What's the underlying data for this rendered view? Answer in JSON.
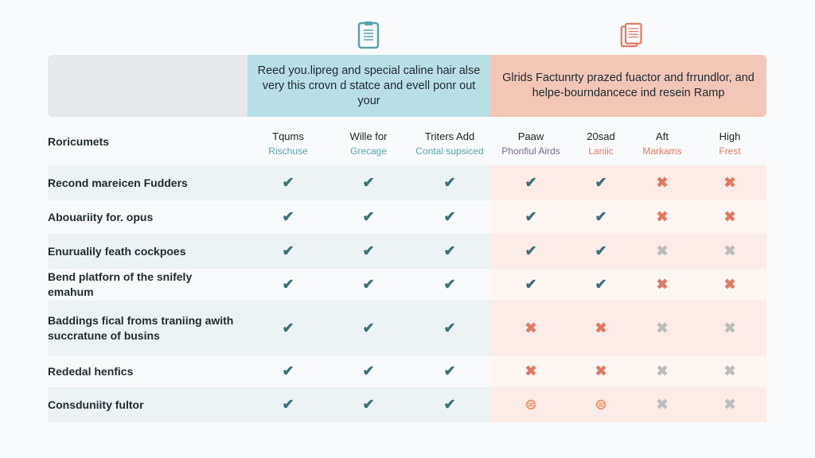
{
  "colors": {
    "blue_band": "#b9dfe6",
    "salmon_band": "#f3c6b8",
    "gray_band": "#e6e8e9",
    "check": "#3f6f7a",
    "cross": "#e07a63",
    "cross_muted": "#bdbdbd"
  },
  "icons": {
    "left": "clipboard-icon",
    "right": "document-icon"
  },
  "bands": {
    "blue": "Reed you.lipreg and special caline hair alse very this crovn d statce and evell ponr out your",
    "salmon": "Glrids Factunrty prazed fuactor and frrundlor, and helpe-bourndancece ind resein Ramp"
  },
  "table": {
    "corner": "Roricumets",
    "columns": [
      {
        "title": "Tqums",
        "sub": "Rischuse",
        "sub_color": "#5aa3ad"
      },
      {
        "title": "Wille for",
        "sub": "Grecage",
        "sub_color": "#5aa3ad"
      },
      {
        "title": "Triters Add",
        "sub": "Contal supsiced",
        "sub_color": "#5aa3ad"
      },
      {
        "title": "Paaw",
        "sub": "Phonfiul Airds",
        "sub_color": "#7b6a8e"
      },
      {
        "title": "20sad",
        "sub": "Laniic",
        "sub_color": "#e07a63"
      },
      {
        "title": "Aft",
        "sub": "Markams",
        "sub_color": "#e07a63"
      },
      {
        "title": "High",
        "sub": "Frest",
        "sub_color": "#e07a63"
      }
    ],
    "rows": [
      {
        "label": "Recond mareicen Fudders",
        "marks": [
          "check",
          "check",
          "check",
          "check",
          "check",
          "cross",
          "cross"
        ]
      },
      {
        "label": "Abouariity for. opus",
        "marks": [
          "check",
          "check",
          "check",
          "check",
          "check",
          "cross",
          "cross"
        ]
      },
      {
        "label": "Enurualily feath cockpoes",
        "marks": [
          "check",
          "check",
          "check",
          "check",
          "check",
          "cross-muted",
          "cross-muted"
        ]
      },
      {
        "label": "Bend platforn of the snifely emahum",
        "marks": [
          "check",
          "check",
          "check",
          "check",
          "check",
          "cross",
          "cross"
        ]
      },
      {
        "label": "Baddings fical froms traniing awith succratune of busins",
        "marks": [
          "check",
          "check",
          "check",
          "cross",
          "cross",
          "cross-muted",
          "cross-muted"
        ]
      },
      {
        "label": "Rededal henfics",
        "marks": [
          "check",
          "check",
          "check",
          "cross",
          "cross",
          "cross-muted",
          "cross-muted"
        ]
      },
      {
        "label": "Consduniity fultor",
        "marks": [
          "check",
          "check",
          "check",
          "other",
          "other",
          "cross-muted",
          "cross-muted"
        ]
      }
    ]
  }
}
